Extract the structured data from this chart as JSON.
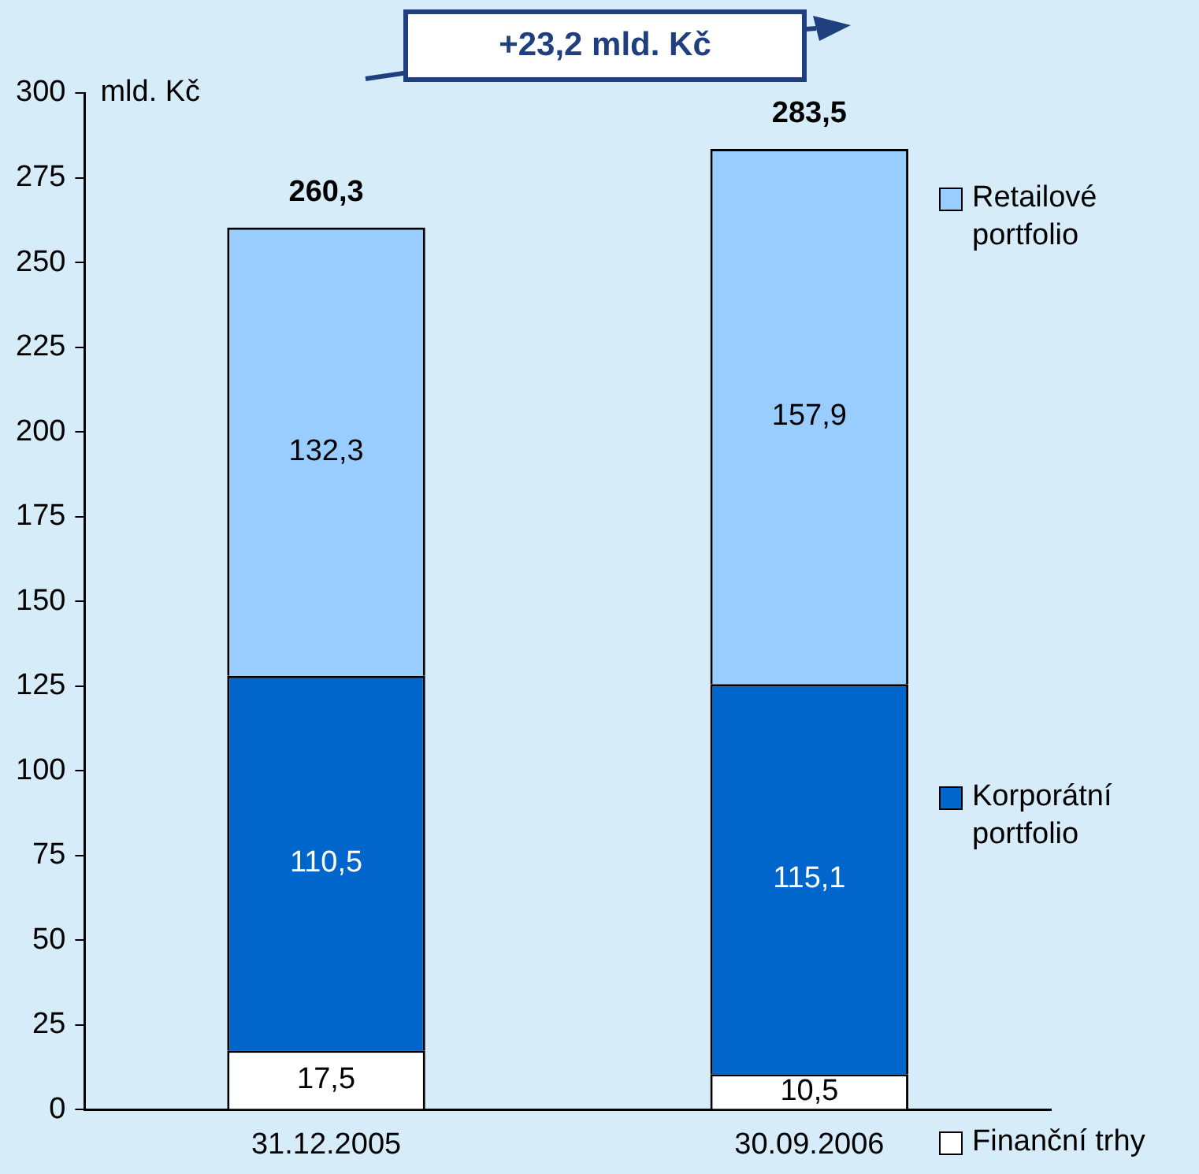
{
  "chart_data": {
    "type": "bar",
    "stacked": true,
    "categories": [
      "31.12.2005",
      "30.09.2006"
    ],
    "ylabel": "mld. Kč",
    "ylim": [
      0,
      300
    ],
    "yticks": [
      0,
      25,
      50,
      75,
      100,
      125,
      150,
      175,
      200,
      225,
      250,
      275,
      300
    ],
    "grid": false,
    "legend": "right",
    "series": [
      {
        "name": "Finanční trhy",
        "color": "#ffffff",
        "values": [
          17.5,
          10.5
        ],
        "value_labels": [
          "17,5",
          "10,5"
        ]
      },
      {
        "name": "Korporátní portfolio",
        "color": "#0066cc",
        "values": [
          110.5,
          115.1
        ],
        "value_labels": [
          "110,5",
          "115,1"
        ]
      },
      {
        "name": "Retailové portfolio",
        "color": "#99ccff",
        "values": [
          132.3,
          157.9
        ],
        "value_labels": [
          "132,3",
          "157,9"
        ]
      }
    ],
    "totals": [
      "260,3",
      "283,5"
    ],
    "annotations": [
      "+23,2 mld. Kč"
    ]
  }
}
